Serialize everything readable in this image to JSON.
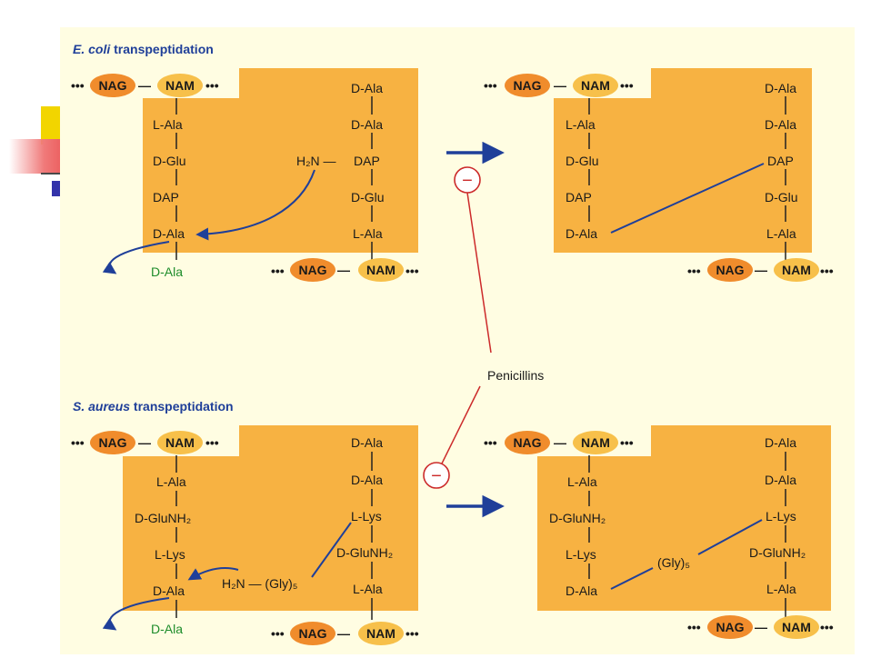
{
  "colors": {
    "panel": "#f7b242",
    "oval_nag": "#f08c2c",
    "oval_nam": "#f7c04a",
    "arrow_blue": "#1f3f99",
    "bond_blue": "#1f3f99",
    "inhibit_red": "#cc2a2a",
    "released_green": "#1d8c2a",
    "title_blue": "#1f3f99",
    "background": "#fffde2"
  },
  "ecoli": {
    "title_italic": "E. coli",
    "title_rest": " transpeptidation",
    "before": {
      "top_chain": [
        "•••",
        "NAG",
        "—",
        "NAM",
        "•••"
      ],
      "left_stem": [
        "L-Ala",
        "D-Glu",
        "DAP",
        "D-Ala"
      ],
      "right_stem": [
        "D-Ala",
        "D-Ala",
        "DAP",
        "D-Glu",
        "L-Ala"
      ],
      "amine": "H₂N —",
      "released": "D-Ala",
      "bottom_chain": [
        "•••",
        "NAG",
        "—",
        "NAM",
        "•••"
      ]
    },
    "after": {
      "top_chain": [
        "•••",
        "NAG",
        "—",
        "NAM",
        "•••"
      ],
      "left_stem": [
        "L-Ala",
        "D-Glu",
        "DAP",
        "D-Ala"
      ],
      "right_stem": [
        "D-Ala",
        "D-Ala",
        "DAP",
        "D-Glu",
        "L-Ala"
      ],
      "bottom_chain": [
        "•••",
        "NAG",
        "—",
        "NAM",
        "•••"
      ]
    }
  },
  "saureus": {
    "title_italic": "S. aureus",
    "title_rest": " transpeptidation",
    "before": {
      "top_chain": [
        "•••",
        "NAG",
        "—",
        "NAM",
        "•••"
      ],
      "left_stem": [
        "L-Ala",
        "D-GluNH₂",
        "L-Lys",
        "D-Ala"
      ],
      "right_stem": [
        "D-Ala",
        "D-Ala",
        "L-Lys",
        "D-GluNH₂",
        "L-Ala"
      ],
      "bridge": "H₂N — (Gly)₅",
      "released": "D-Ala",
      "bottom_chain": [
        "•••",
        "NAG",
        "—",
        "NAM",
        "•••"
      ]
    },
    "after": {
      "top_chain": [
        "•••",
        "NAG",
        "—",
        "NAM",
        "•••"
      ],
      "left_stem": [
        "L-Ala",
        "D-GluNH₂",
        "L-Lys",
        "D-Ala"
      ],
      "right_stem": [
        "D-Ala",
        "D-Ala",
        "L-Lys",
        "D-GluNH₂",
        "L-Ala"
      ],
      "bridge": "(Gly)₅",
      "bottom_chain": [
        "•••",
        "NAG",
        "—",
        "NAM",
        "•••"
      ]
    }
  },
  "inhibitor": {
    "label": "Penicillins",
    "symbol": "−"
  }
}
